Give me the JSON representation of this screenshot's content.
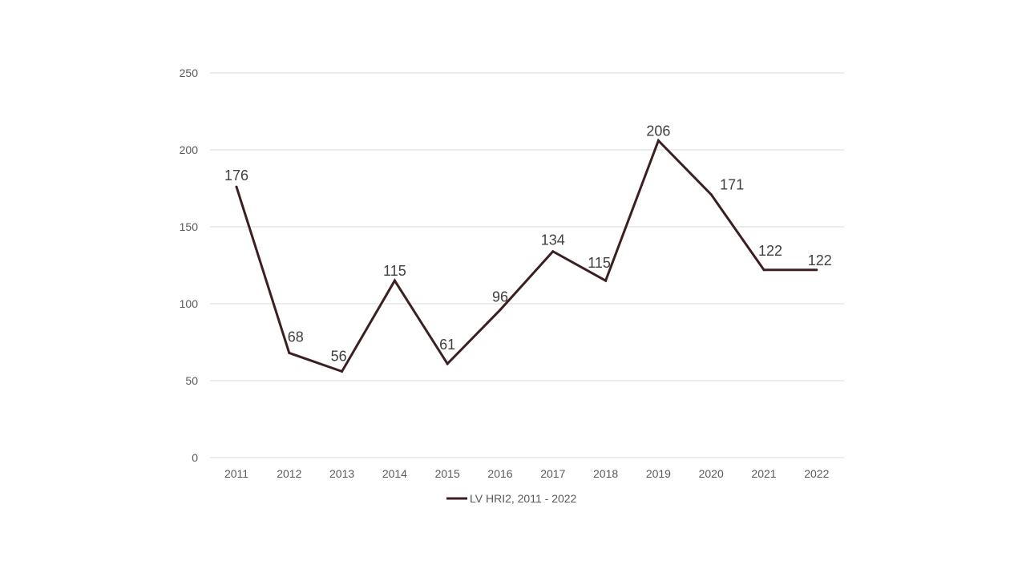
{
  "chart_data": {
    "type": "line",
    "title": "",
    "xlabel": "",
    "ylabel": "",
    "categories": [
      "2011",
      "2012",
      "2013",
      "2014",
      "2015",
      "2016",
      "2017",
      "2018",
      "2019",
      "2020",
      "2021",
      "2022"
    ],
    "series": [
      {
        "name": "LV HRI2, 2011 - 2022",
        "values": [
          176,
          68,
          56,
          115,
          61,
          96,
          134,
          115,
          206,
          171,
          122,
          122
        ],
        "color": "#3b1f21"
      }
    ],
    "ylim": [
      0,
      250
    ],
    "yticks": [
      0,
      50,
      100,
      150,
      200,
      250
    ],
    "grid": true,
    "data_labels": true,
    "legend": "bottom",
    "gridline_color": "#d9d9d9",
    "text_color": "#595959"
  }
}
